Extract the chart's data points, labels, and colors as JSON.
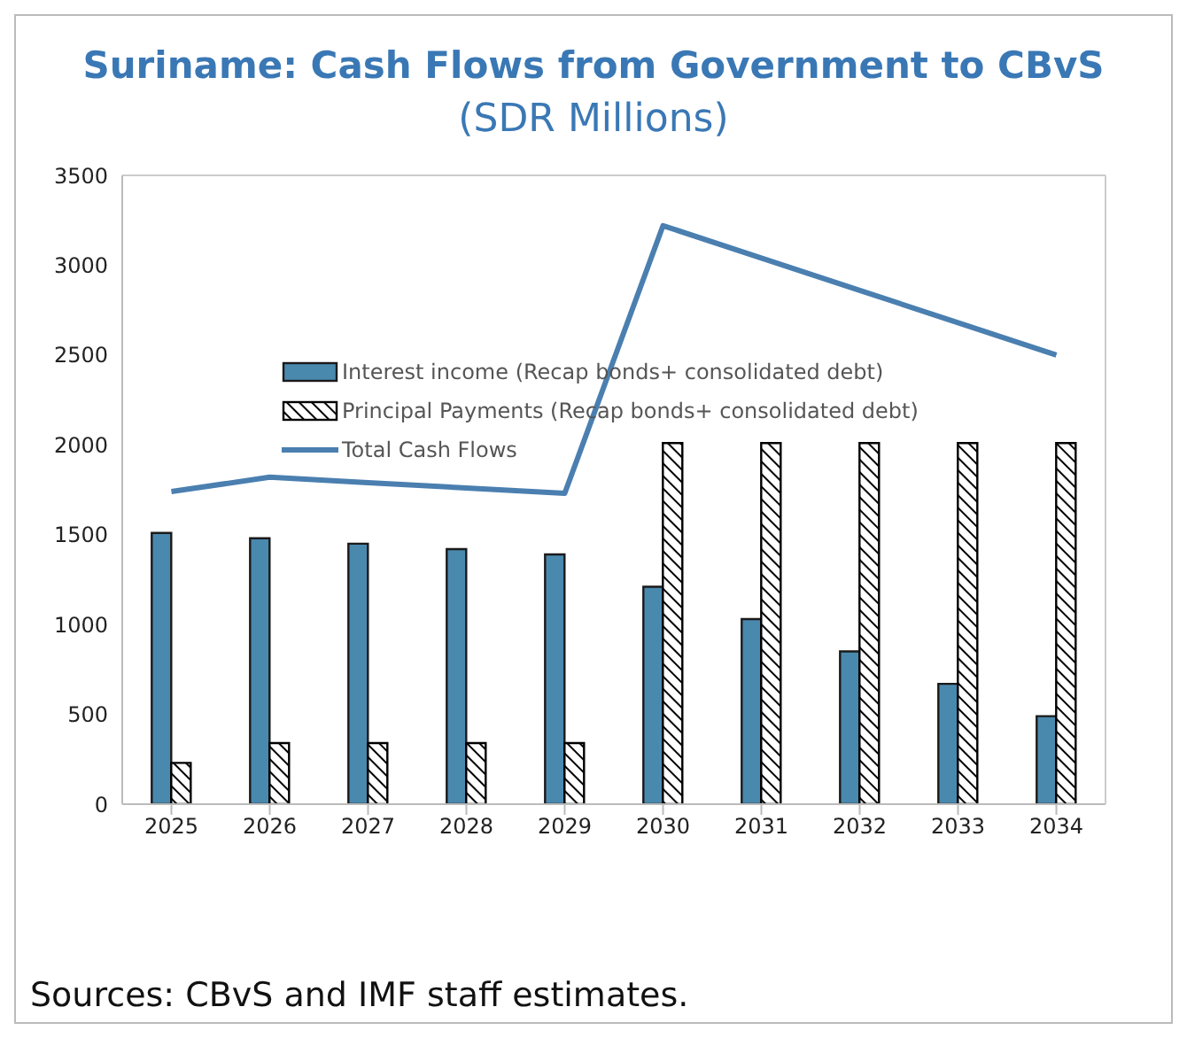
{
  "chart_data": {
    "type": "bar",
    "title": "Suriname: Cash Flows from Government to CBvS",
    "subtitle": "(SDR Millions)",
    "categories": [
      "2025",
      "2026",
      "2027",
      "2028",
      "2029",
      "2030",
      "2031",
      "2032",
      "2033",
      "2034"
    ],
    "series": [
      {
        "name": "Interest income (Recap bonds+ consolidated debt)",
        "color": "#4a89ae",
        "values": [
          1510,
          1480,
          1450,
          1420,
          1390,
          1210,
          1030,
          850,
          670,
          490
        ]
      },
      {
        "name": "Principal Payments (Recap bonds+ consolidated debt)",
        "color": "#000000",
        "values": [
          230,
          340,
          340,
          340,
          340,
          2010,
          2010,
          2010,
          2010,
          2010
        ]
      },
      {
        "name": "Total Cash Flows",
        "type": "line",
        "color": "#4a7fb0",
        "values": [
          1740,
          1820,
          1790,
          1760,
          1730,
          3220,
          3040,
          2860,
          2680,
          2500
        ]
      }
    ],
    "ylim": [
      0,
      3500
    ],
    "yticks": [
      0,
      500,
      1000,
      1500,
      2000,
      2500,
      3000,
      3500
    ],
    "grid": false,
    "legend": "top left",
    "marker": "none",
    "annotations": [
      "Sources: CBvS and IMF staff estimates."
    ]
  }
}
